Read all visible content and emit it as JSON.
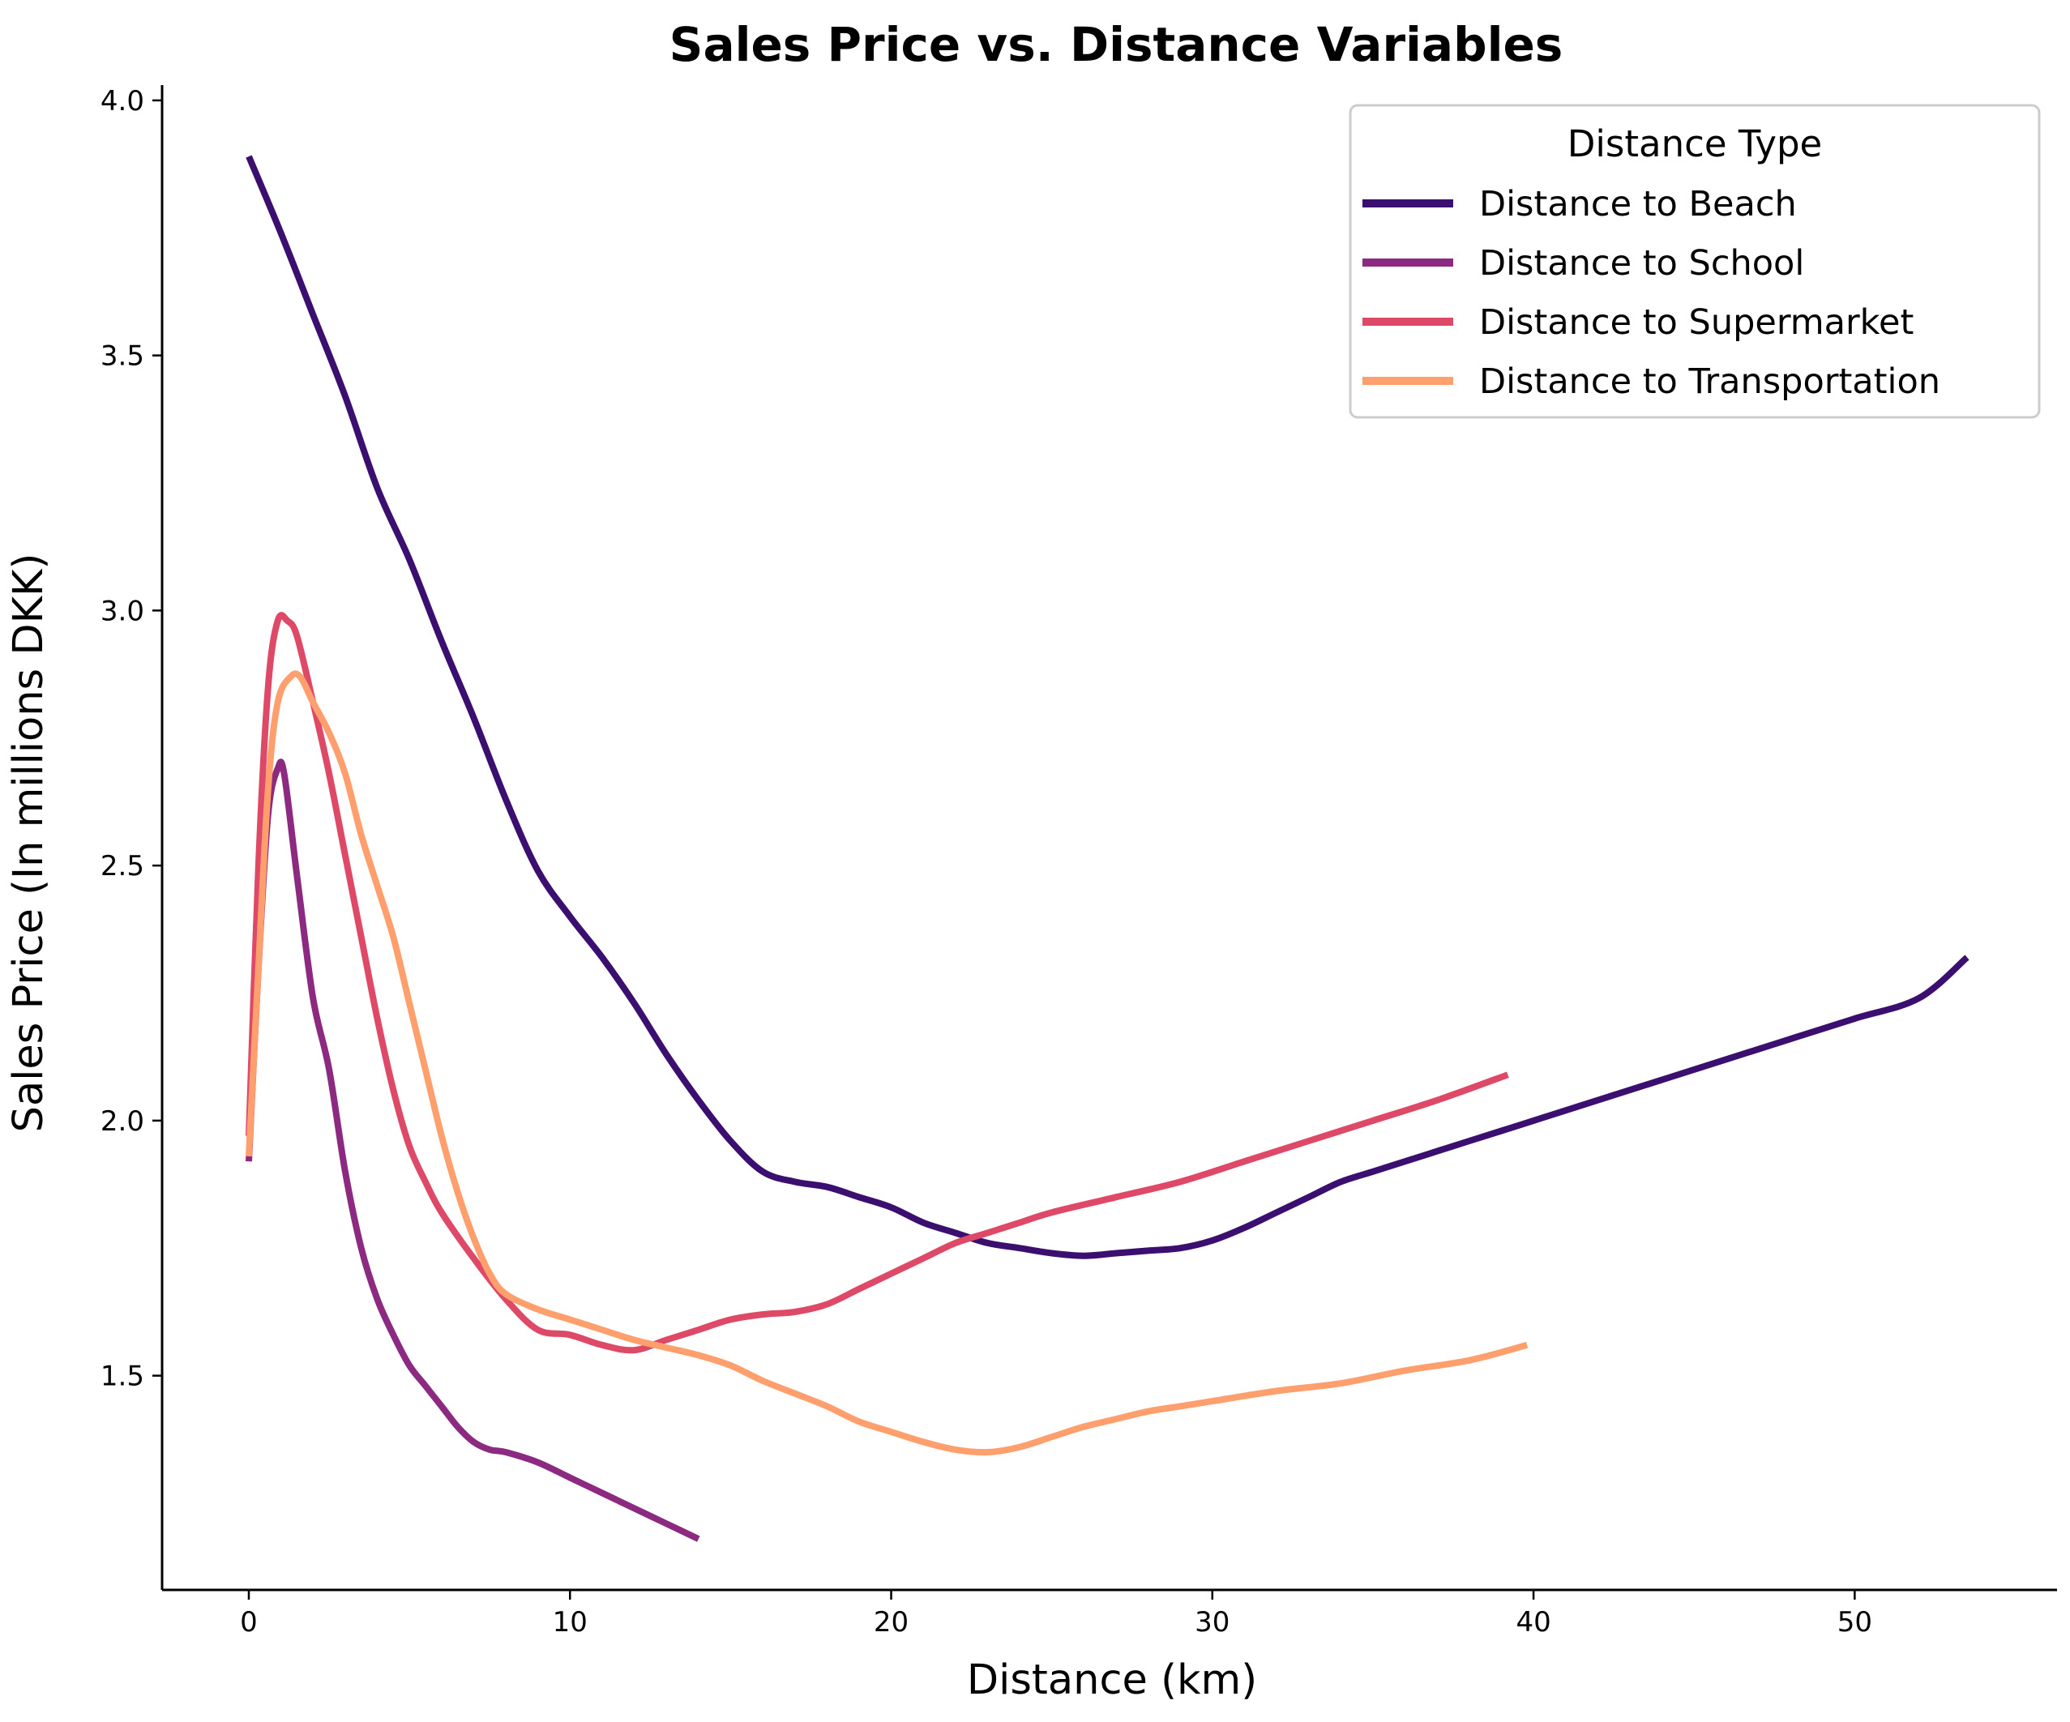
{
  "chart_data": {
    "type": "line",
    "title": "Sales Price vs. Distance Variables",
    "xlabel": "Distance (km)",
    "ylabel": "Sales Price (In millions DKK)",
    "xlim": [
      -2.7,
      56.3
    ],
    "ylim": [
      1.08,
      4.03
    ],
    "x_ticks": [
      0,
      10,
      20,
      30,
      40,
      50
    ],
    "y_ticks": [
      1.5,
      2.0,
      2.5,
      3.0,
      3.5,
      4.0
    ],
    "x_tick_labels": [
      "0",
      "10",
      "20",
      "30",
      "40",
      "50"
    ],
    "y_tick_labels": [
      "1.5",
      "2.0",
      "2.5",
      "3.0",
      "3.5",
      "4.0"
    ],
    "grid": false,
    "legend": {
      "title": "Distance Type",
      "position": "top-right"
    },
    "series": [
      {
        "name": "Distance to Beach",
        "color": "#3b0f70",
        "points": [
          [
            0.0,
            3.89
          ],
          [
            1.0,
            3.74
          ],
          [
            2.0,
            3.58
          ],
          [
            3.0,
            3.42
          ],
          [
            4.0,
            3.24
          ],
          [
            5.0,
            3.1
          ],
          [
            6.0,
            2.94
          ],
          [
            7.0,
            2.79
          ],
          [
            8.0,
            2.63
          ],
          [
            9.0,
            2.49
          ],
          [
            10.0,
            2.4
          ],
          [
            11.0,
            2.32
          ],
          [
            12.0,
            2.23
          ],
          [
            13.0,
            2.13
          ],
          [
            14.0,
            2.04
          ],
          [
            15.0,
            1.96
          ],
          [
            16.0,
            1.9
          ],
          [
            17.0,
            1.88
          ],
          [
            18.0,
            1.87
          ],
          [
            19.0,
            1.85
          ],
          [
            20.0,
            1.83
          ],
          [
            21.0,
            1.8
          ],
          [
            22.0,
            1.78
          ],
          [
            23.0,
            1.76
          ],
          [
            24.0,
            1.75
          ],
          [
            25.0,
            1.74
          ],
          [
            26.0,
            1.735
          ],
          [
            27.0,
            1.74
          ],
          [
            28.0,
            1.745
          ],
          [
            29.0,
            1.75
          ],
          [
            30.0,
            1.765
          ],
          [
            31.0,
            1.79
          ],
          [
            32.0,
            1.82
          ],
          [
            33.0,
            1.85
          ],
          [
            34.0,
            1.88
          ],
          [
            35.0,
            1.9
          ],
          [
            36.0,
            1.92
          ],
          [
            37.0,
            1.94
          ],
          [
            38.0,
            1.96
          ],
          [
            39.0,
            1.98
          ],
          [
            40.0,
            2.0
          ],
          [
            42.0,
            2.04
          ],
          [
            44.0,
            2.08
          ],
          [
            46.0,
            2.12
          ],
          [
            48.0,
            2.16
          ],
          [
            50.0,
            2.2
          ],
          [
            52.0,
            2.24
          ],
          [
            53.5,
            2.32
          ]
        ]
      },
      {
        "name": "Distance to School",
        "color": "#8c2981",
        "points": [
          [
            0.0,
            1.92
          ],
          [
            0.3,
            2.3
          ],
          [
            0.6,
            2.6
          ],
          [
            0.9,
            2.69
          ],
          [
            1.1,
            2.68
          ],
          [
            1.5,
            2.48
          ],
          [
            2.0,
            2.24
          ],
          [
            2.5,
            2.1
          ],
          [
            3.0,
            1.9
          ],
          [
            3.5,
            1.75
          ],
          [
            4.0,
            1.65
          ],
          [
            4.5,
            1.58
          ],
          [
            5.0,
            1.52
          ],
          [
            5.5,
            1.48
          ],
          [
            6.0,
            1.44
          ],
          [
            6.5,
            1.4
          ],
          [
            7.0,
            1.37
          ],
          [
            7.5,
            1.355
          ],
          [
            8.0,
            1.35
          ],
          [
            9.0,
            1.33
          ],
          [
            10.0,
            1.3
          ],
          [
            11.0,
            1.27
          ],
          [
            12.0,
            1.24
          ],
          [
            13.0,
            1.21
          ],
          [
            14.0,
            1.18
          ]
        ]
      },
      {
        "name": "Distance to Supermarket",
        "color": "#de4968",
        "points": [
          [
            0.0,
            1.97
          ],
          [
            0.3,
            2.5
          ],
          [
            0.6,
            2.85
          ],
          [
            0.9,
            2.98
          ],
          [
            1.2,
            2.98
          ],
          [
            1.5,
            2.95
          ],
          [
            2.0,
            2.82
          ],
          [
            2.5,
            2.68
          ],
          [
            3.0,
            2.52
          ],
          [
            3.5,
            2.36
          ],
          [
            4.0,
            2.2
          ],
          [
            4.5,
            2.06
          ],
          [
            5.0,
            1.95
          ],
          [
            5.5,
            1.88
          ],
          [
            6.0,
            1.82
          ],
          [
            7.0,
            1.73
          ],
          [
            8.0,
            1.65
          ],
          [
            9.0,
            1.59
          ],
          [
            10.0,
            1.58
          ],
          [
            11.0,
            1.56
          ],
          [
            12.0,
            1.55
          ],
          [
            13.0,
            1.57
          ],
          [
            14.0,
            1.59
          ],
          [
            15.0,
            1.61
          ],
          [
            16.0,
            1.62
          ],
          [
            17.0,
            1.625
          ],
          [
            18.0,
            1.64
          ],
          [
            19.0,
            1.67
          ],
          [
            20.0,
            1.7
          ],
          [
            21.0,
            1.73
          ],
          [
            22.0,
            1.76
          ],
          [
            23.0,
            1.78
          ],
          [
            24.0,
            1.8
          ],
          [
            25.0,
            1.82
          ],
          [
            27.0,
            1.85
          ],
          [
            29.0,
            1.88
          ],
          [
            31.0,
            1.92
          ],
          [
            33.0,
            1.96
          ],
          [
            35.0,
            2.0
          ],
          [
            37.0,
            2.04
          ],
          [
            39.2,
            2.09
          ]
        ]
      },
      {
        "name": "Distance to Transportation",
        "color": "#fe9f6d",
        "points": [
          [
            0.0,
            1.93
          ],
          [
            0.3,
            2.3
          ],
          [
            0.6,
            2.65
          ],
          [
            0.9,
            2.82
          ],
          [
            1.3,
            2.87
          ],
          [
            1.6,
            2.87
          ],
          [
            2.0,
            2.82
          ],
          [
            2.5,
            2.76
          ],
          [
            3.0,
            2.68
          ],
          [
            3.5,
            2.56
          ],
          [
            4.0,
            2.46
          ],
          [
            4.5,
            2.36
          ],
          [
            5.0,
            2.23
          ],
          [
            5.5,
            2.1
          ],
          [
            6.0,
            1.97
          ],
          [
            6.5,
            1.86
          ],
          [
            7.0,
            1.77
          ],
          [
            7.5,
            1.7
          ],
          [
            8.0,
            1.66
          ],
          [
            9.0,
            1.63
          ],
          [
            10.0,
            1.61
          ],
          [
            11.0,
            1.59
          ],
          [
            12.0,
            1.57
          ],
          [
            13.0,
            1.555
          ],
          [
            14.0,
            1.54
          ],
          [
            15.0,
            1.52
          ],
          [
            16.0,
            1.49
          ],
          [
            17.0,
            1.465
          ],
          [
            18.0,
            1.44
          ],
          [
            19.0,
            1.41
          ],
          [
            20.0,
            1.39
          ],
          [
            21.0,
            1.37
          ],
          [
            22.0,
            1.355
          ],
          [
            23.0,
            1.35
          ],
          [
            24.0,
            1.36
          ],
          [
            25.0,
            1.38
          ],
          [
            26.0,
            1.4
          ],
          [
            27.0,
            1.415
          ],
          [
            28.0,
            1.43
          ],
          [
            29.0,
            1.44
          ],
          [
            30.0,
            1.45
          ],
          [
            32.0,
            1.47
          ],
          [
            34.0,
            1.485
          ],
          [
            36.0,
            1.51
          ],
          [
            38.0,
            1.53
          ],
          [
            39.8,
            1.56
          ]
        ]
      }
    ]
  }
}
